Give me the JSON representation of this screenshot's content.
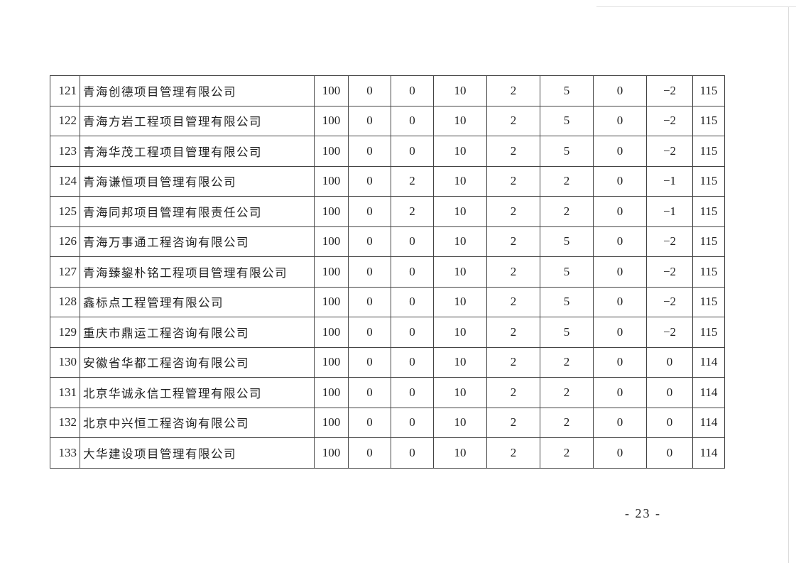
{
  "table": {
    "rows": [
      {
        "no": "121",
        "name": "青海创德项目管理有限公司",
        "values": [
          "100",
          "0",
          "0",
          "10",
          "2",
          "5",
          "0",
          "−2",
          "115"
        ]
      },
      {
        "no": "122",
        "name": "青海方岩工程项目管理有限公司",
        "values": [
          "100",
          "0",
          "0",
          "10",
          "2",
          "5",
          "0",
          "−2",
          "115"
        ]
      },
      {
        "no": "123",
        "name": "青海华茂工程项目管理有限公司",
        "values": [
          "100",
          "0",
          "0",
          "10",
          "2",
          "5",
          "0",
          "−2",
          "115"
        ]
      },
      {
        "no": "124",
        "name": "青海谦恒项目管理有限公司",
        "values": [
          "100",
          "0",
          "2",
          "10",
          "2",
          "2",
          "0",
          "−1",
          "115"
        ]
      },
      {
        "no": "125",
        "name": "青海同邦项目管理有限责任公司",
        "values": [
          "100",
          "0",
          "2",
          "10",
          "2",
          "2",
          "0",
          "−1",
          "115"
        ]
      },
      {
        "no": "126",
        "name": "青海万事通工程咨询有限公司",
        "values": [
          "100",
          "0",
          "0",
          "10",
          "2",
          "5",
          "0",
          "−2",
          "115"
        ]
      },
      {
        "no": "127",
        "name": "青海臻鋆朴铭工程项目管理有限公司",
        "values": [
          "100",
          "0",
          "0",
          "10",
          "2",
          "5",
          "0",
          "−2",
          "115"
        ]
      },
      {
        "no": "128",
        "name": "鑫标点工程管理有限公司",
        "values": [
          "100",
          "0",
          "0",
          "10",
          "2",
          "5",
          "0",
          "−2",
          "115"
        ]
      },
      {
        "no": "129",
        "name": "重庆市鼎运工程咨询有限公司",
        "values": [
          "100",
          "0",
          "0",
          "10",
          "2",
          "5",
          "0",
          "−2",
          "115"
        ]
      },
      {
        "no": "130",
        "name": "安徽省华都工程咨询有限公司",
        "values": [
          "100",
          "0",
          "0",
          "10",
          "2",
          "2",
          "0",
          "0",
          "114"
        ]
      },
      {
        "no": "131",
        "name": "北京华诚永信工程管理有限公司",
        "values": [
          "100",
          "0",
          "0",
          "10",
          "2",
          "2",
          "0",
          "0",
          "114"
        ]
      },
      {
        "no": "132",
        "name": "北京中兴恒工程咨询有限公司",
        "values": [
          "100",
          "0",
          "0",
          "10",
          "2",
          "2",
          "0",
          "0",
          "114"
        ]
      },
      {
        "no": "133",
        "name": "大华建设项目管理有限公司",
        "values": [
          "100",
          "0",
          "0",
          "10",
          "2",
          "2",
          "0",
          "0",
          "114"
        ]
      }
    ]
  },
  "footer": {
    "page_number": "- 23 -"
  }
}
